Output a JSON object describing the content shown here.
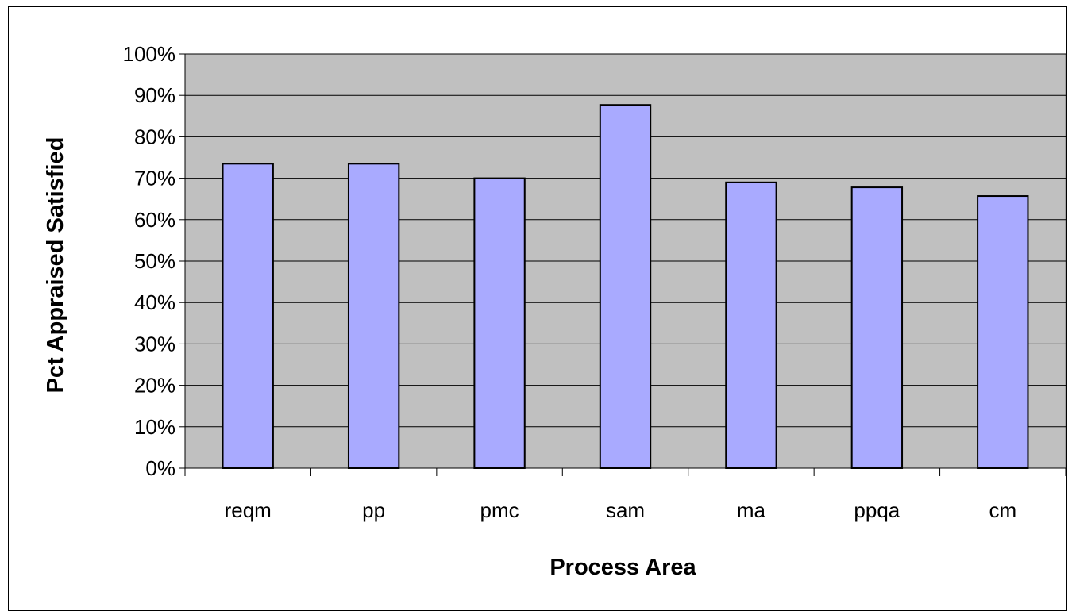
{
  "chart_data": {
    "type": "bar",
    "categories": [
      "reqm",
      "pp",
      "pmc",
      "sam",
      "ma",
      "ppqa",
      "cm"
    ],
    "values": [
      0.735,
      0.735,
      0.7,
      0.877,
      0.69,
      0.678,
      0.657
    ],
    "xlabel": "Process Area",
    "ylabel": "Pct Appraised Satisfied",
    "ylim": [
      0,
      1
    ],
    "yticks": [
      "0%",
      "10%",
      "20%",
      "30%",
      "40%",
      "50%",
      "60%",
      "70%",
      "80%",
      "90%",
      "100%"
    ],
    "grid": true,
    "legend": "none",
    "colors": {
      "bar_fill": "#a9aaff",
      "plot_background": "#c0c0c0",
      "gridline": "#000000"
    }
  }
}
